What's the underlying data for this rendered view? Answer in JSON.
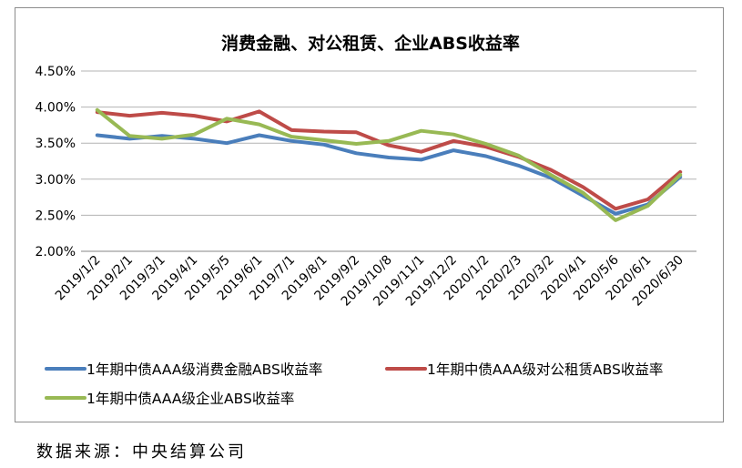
{
  "chart_data": {
    "type": "line",
    "title": "消费金融、对公租赁、企业ABS收益率",
    "xlabel": "",
    "ylabel": "",
    "ylim": [
      0.02,
      0.045
    ],
    "yticks": [
      "2.00%",
      "2.50%",
      "3.00%",
      "3.50%",
      "4.00%",
      "4.50%"
    ],
    "grid": true,
    "legend_position": "bottom",
    "categories": [
      "2019/1/2",
      "2019/2/1",
      "2019/3/1",
      "2019/4/1",
      "2019/5/5",
      "2019/6/1",
      "2019/7/1",
      "2019/8/1",
      "2019/9/2",
      "2019/10/8",
      "2019/11/1",
      "2019/12/2",
      "2020/1/2",
      "2020/2/3",
      "2020/3/2",
      "2020/4/1",
      "2020/5/6",
      "2020/6/1",
      "2020/6/30"
    ],
    "series": [
      {
        "name": "1年期中债AAA级消费金融ABS收益率",
        "color": "#4a7ebb",
        "values": [
          0.0361,
          0.0356,
          0.036,
          0.0356,
          0.035,
          0.0361,
          0.0353,
          0.0348,
          0.0336,
          0.033,
          0.0327,
          0.034,
          0.0332,
          0.0319,
          0.0302,
          0.0277,
          0.0252,
          0.0265,
          0.0303
        ]
      },
      {
        "name": "1年期中债AAA级对公租赁ABS收益率",
        "color": "#be4b48",
        "values": [
          0.0393,
          0.0388,
          0.0392,
          0.0388,
          0.038,
          0.0394,
          0.0368,
          0.0366,
          0.0365,
          0.0347,
          0.0338,
          0.0353,
          0.0345,
          0.0331,
          0.0313,
          0.0289,
          0.0259,
          0.0272,
          0.031
        ]
      },
      {
        "name": "1年期中债AAA级企业ABS收益率",
        "color": "#98b954",
        "values": [
          0.0396,
          0.036,
          0.0356,
          0.0362,
          0.0384,
          0.0376,
          0.0359,
          0.0354,
          0.0349,
          0.0353,
          0.0367,
          0.0362,
          0.0349,
          0.0333,
          0.0306,
          0.0281,
          0.0243,
          0.0263,
          0.0306
        ]
      }
    ]
  },
  "source_note": "数据来源：中央结算公司"
}
